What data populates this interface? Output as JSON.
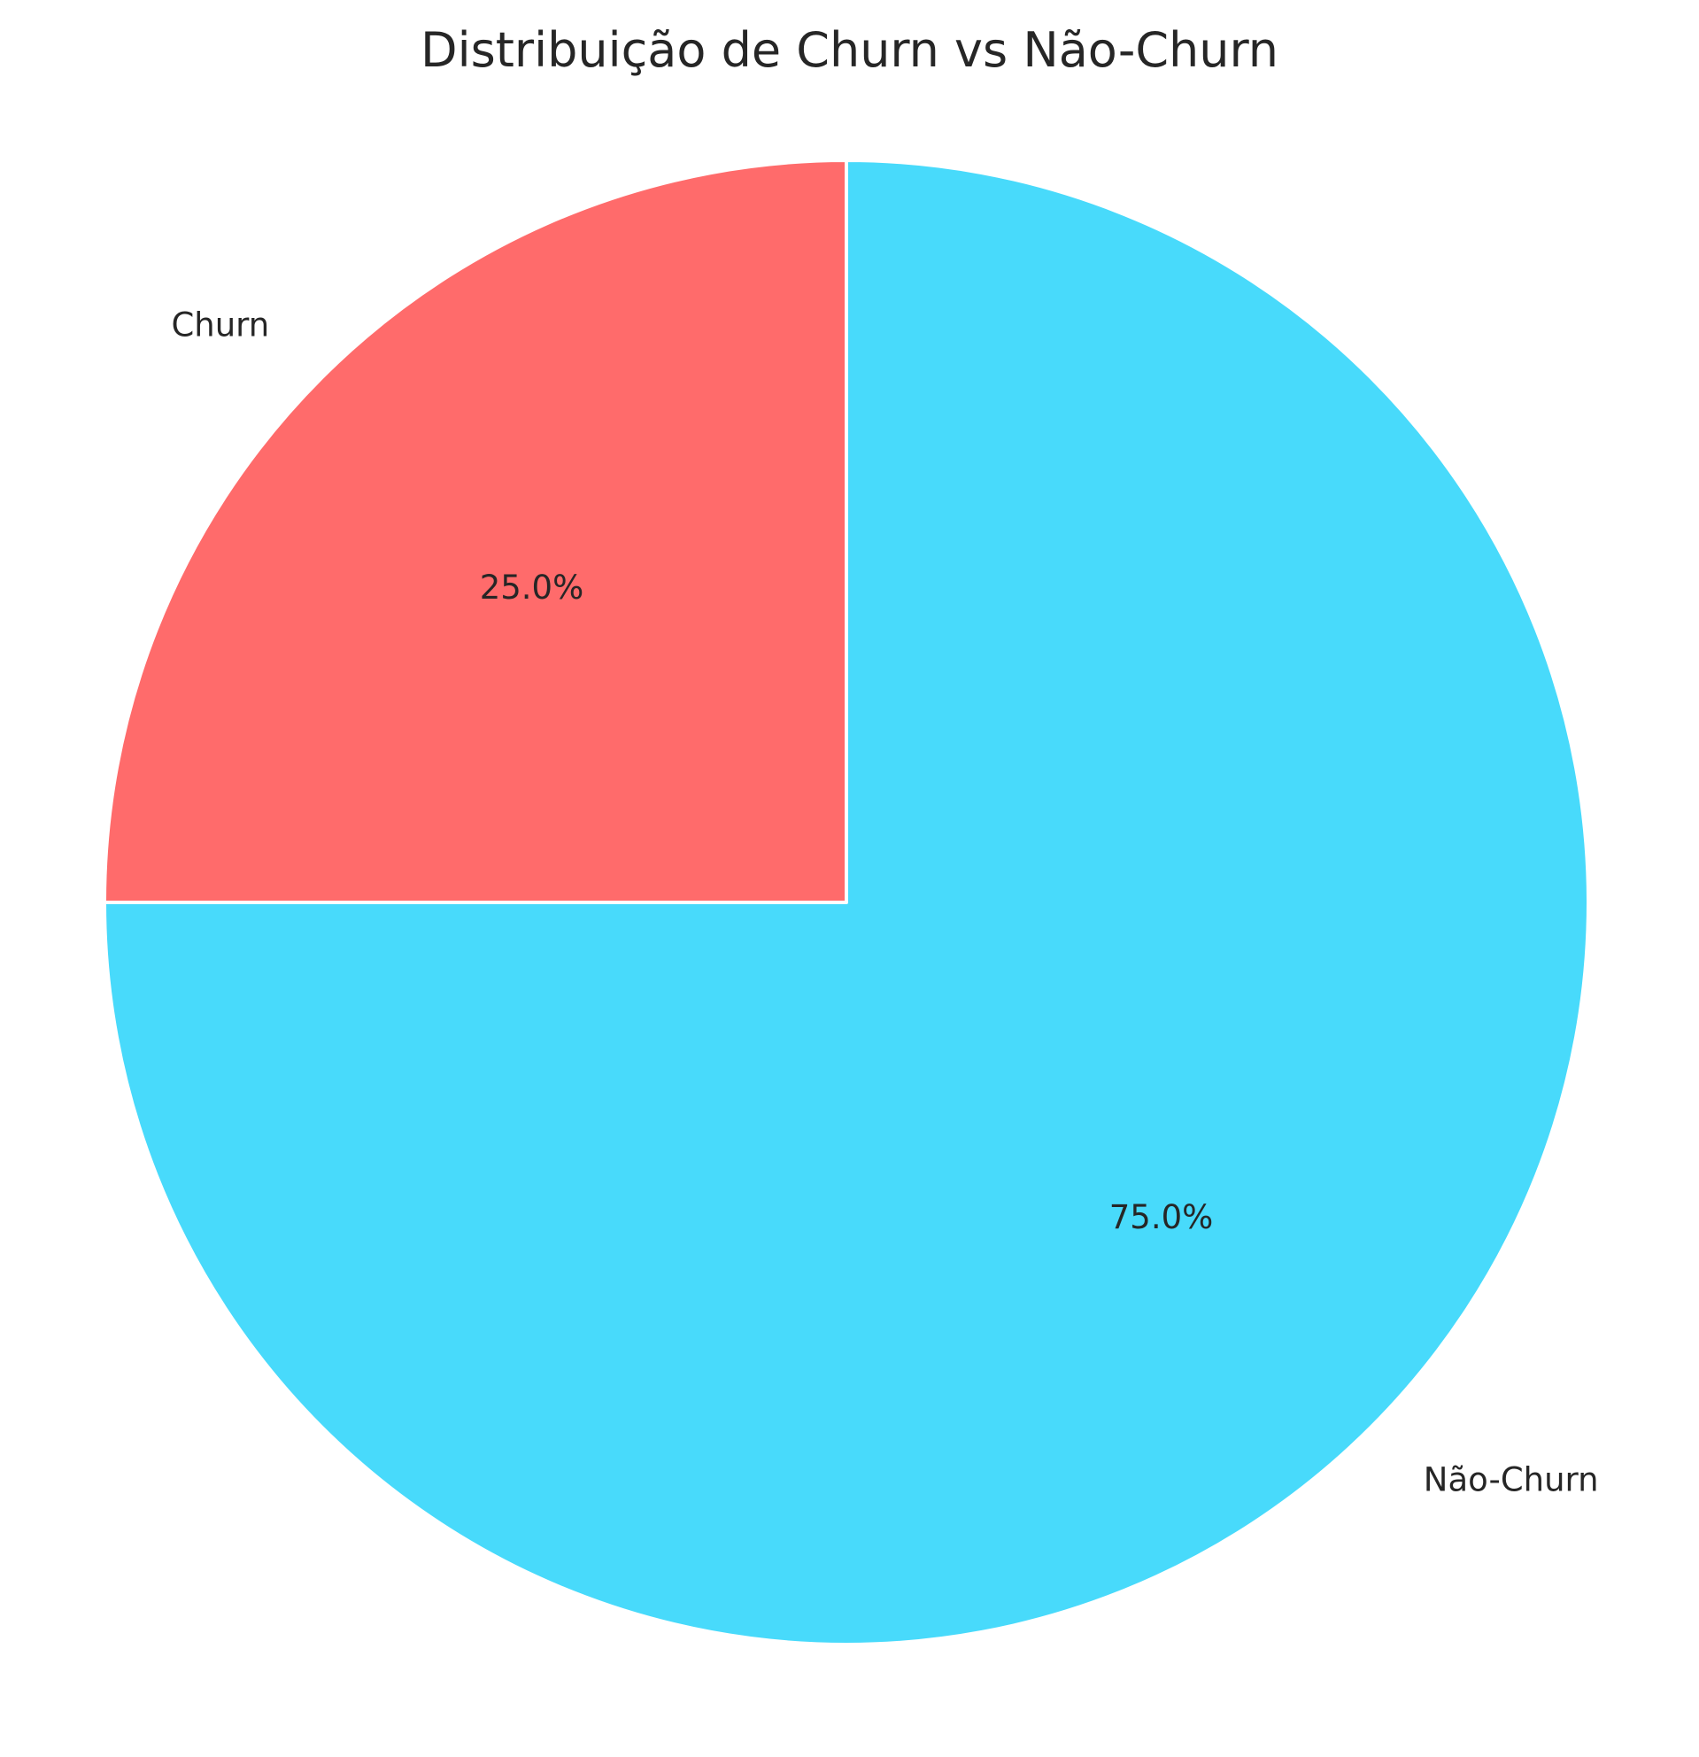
{
  "chart_data": {
    "type": "pie",
    "title": "Distribuição de Churn vs Não-Churn",
    "slices": [
      {
        "label": "Churn",
        "value": 25.0,
        "pct_label": "25.0%",
        "color": "#FF6B6B"
      },
      {
        "label": "Não-Churn",
        "value": 75.0,
        "pct_label": "75.0%",
        "color": "#48DAFB"
      }
    ],
    "start_angle_deg": 90,
    "direction": "counterclockwise",
    "legend": "none"
  }
}
